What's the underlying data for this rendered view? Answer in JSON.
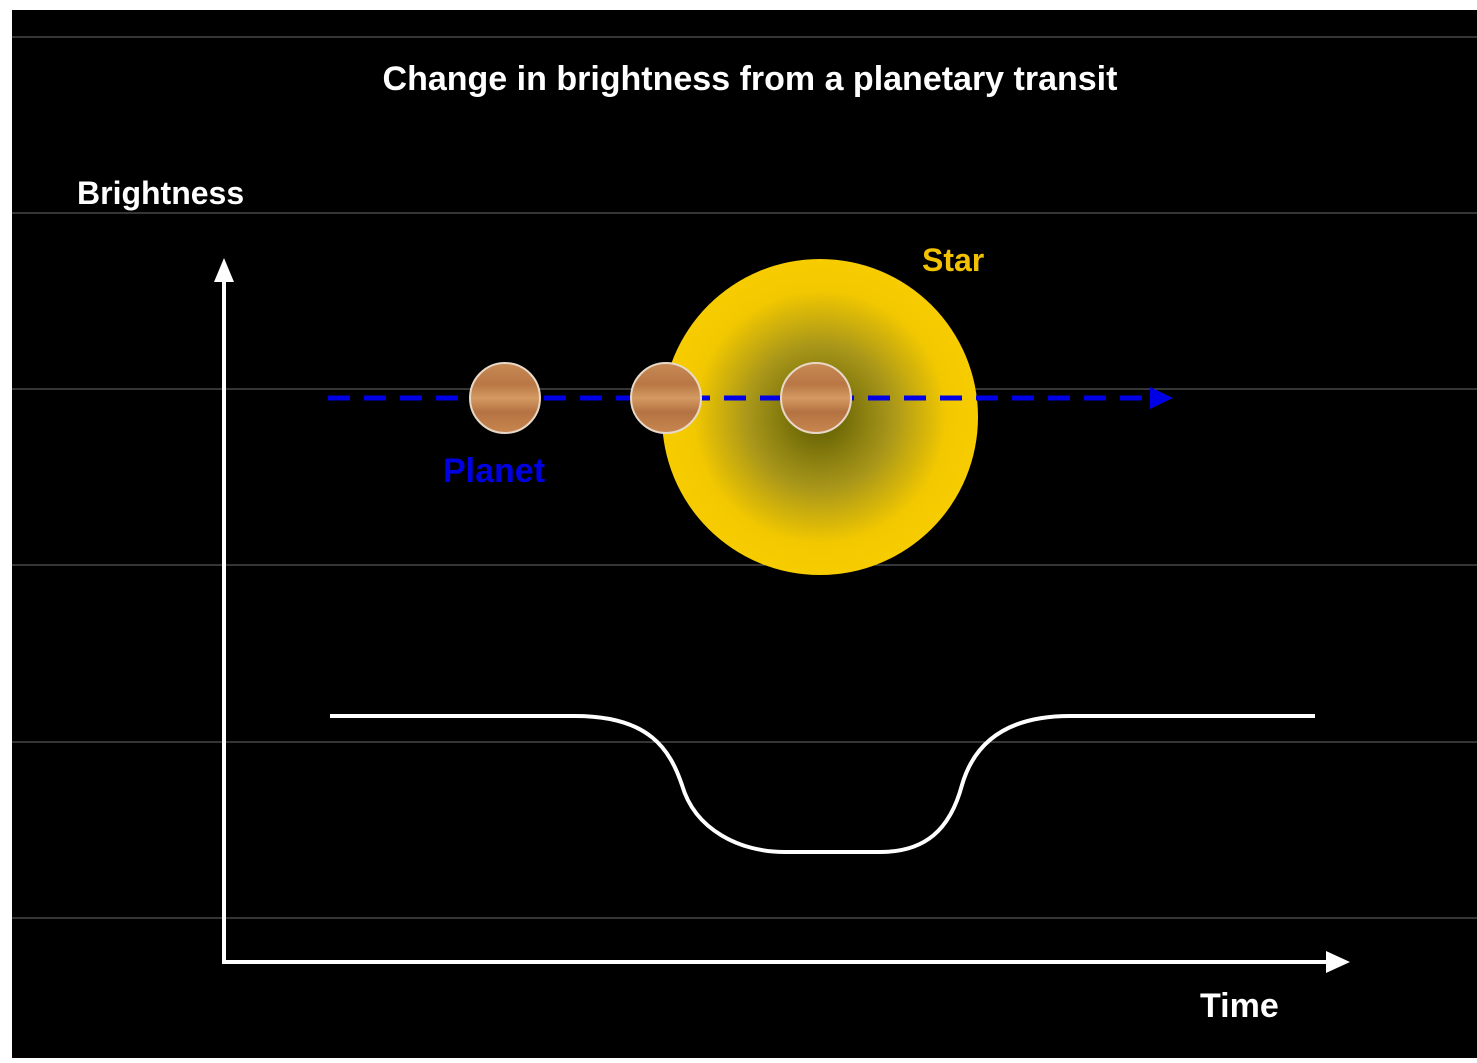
{
  "title": "Change in brightness from a planetary transit",
  "axes": {
    "y_label": "Brightness",
    "x_label": "Time"
  },
  "labels": {
    "star": "Star",
    "planet": "Planet"
  }
}
